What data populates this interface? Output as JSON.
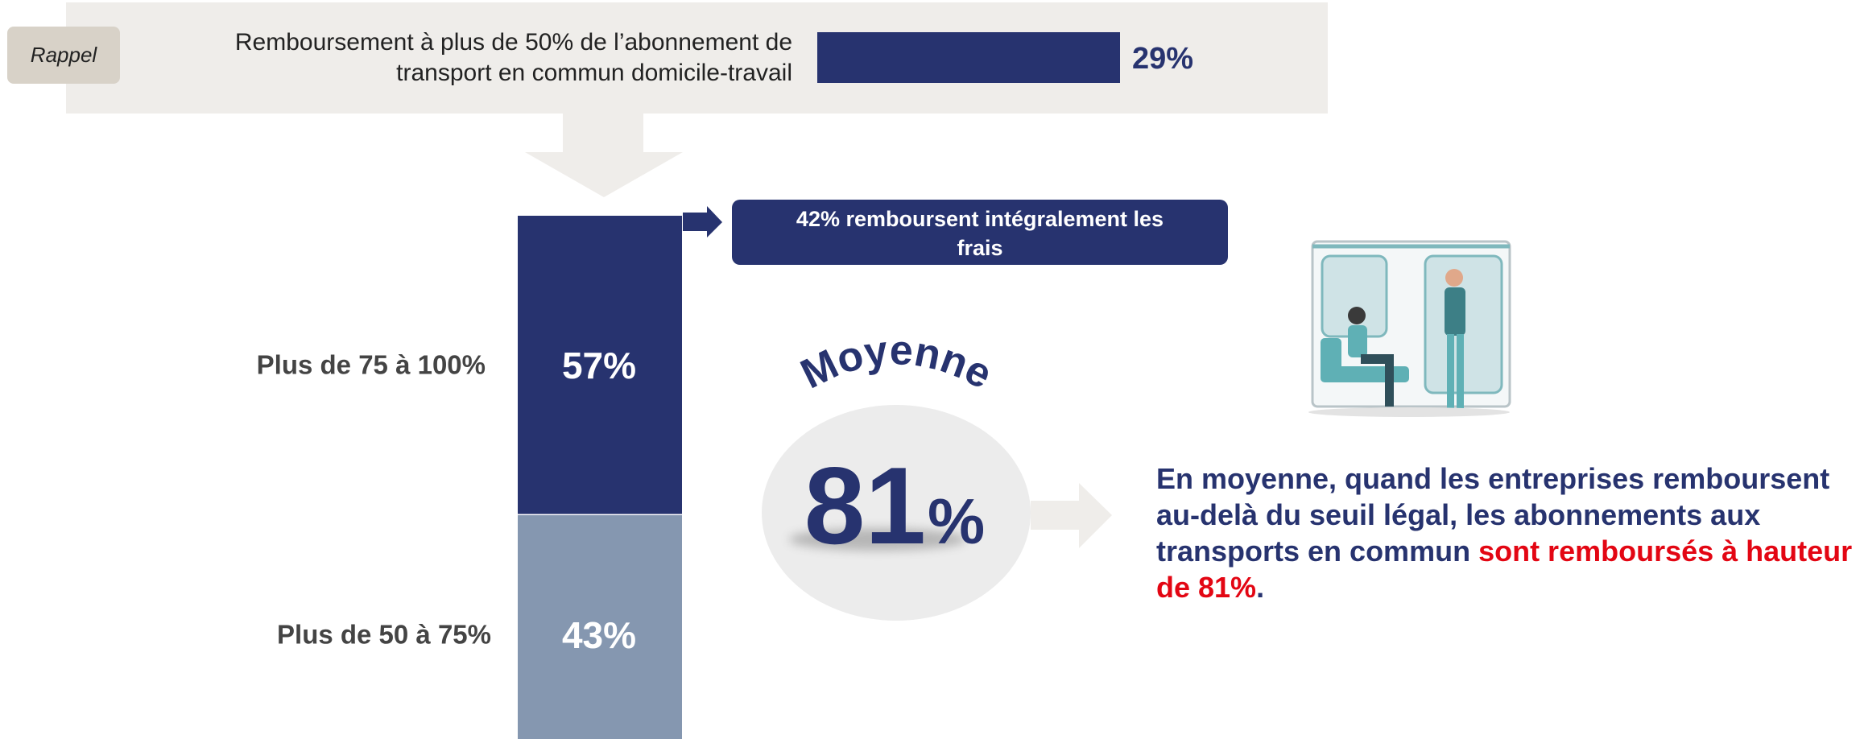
{
  "rappel": {
    "tag": "Rappel",
    "lines": [
      "Remboursement à plus de 50% de l’abonnement de",
      "transport en commun domicile-travail"
    ],
    "value": 29,
    "value_label": "29%",
    "color": "#27336f"
  },
  "stack": {
    "segments": [
      {
        "label": "Plus de 75 à 100%",
        "value": 57,
        "value_label": "57%",
        "color": "#27336f"
      },
      {
        "label": "Plus de 50 à 75%",
        "value": 43,
        "value_label": "43%",
        "color": "#8597b0"
      }
    ]
  },
  "callout": {
    "lines": [
      "42% remboursent intégralement les",
      "frais"
    ]
  },
  "average": {
    "title": "Moyenne",
    "number": "81",
    "unit": "%"
  },
  "summary": {
    "parts": [
      {
        "text": "En moyenne, quand les entreprises remboursent au-delà du seuil légal, les abonnements aux transports en commun ",
        "color": "#27336f"
      },
      {
        "text": "sont remboursés à hauteur de 81%",
        "color": "#e30613"
      },
      {
        "text": ".",
        "color": "#27336f"
      }
    ]
  }
}
